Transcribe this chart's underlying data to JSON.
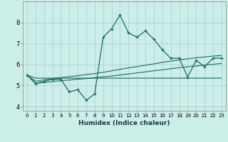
{
  "xlabel": "Humidex (Indice chaleur)",
  "background_color": "#cceee8",
  "grid_color": "#aacccc",
  "line_color": "#1a6b5a",
  "x_values": [
    0,
    1,
    2,
    3,
    4,
    5,
    6,
    7,
    8,
    9,
    10,
    11,
    12,
    13,
    14,
    15,
    16,
    17,
    18,
    19,
    20,
    21,
    22,
    23
  ],
  "y_main": [
    5.5,
    5.1,
    5.2,
    5.3,
    5.3,
    4.7,
    4.8,
    4.3,
    4.6,
    7.3,
    7.7,
    8.35,
    7.5,
    7.3,
    7.6,
    7.2,
    6.7,
    6.3,
    6.3,
    5.4,
    6.2,
    5.9,
    6.3,
    6.3
  ],
  "y_upper": [
    5.5,
    5.2,
    5.27,
    5.33,
    5.38,
    5.42,
    5.47,
    5.52,
    5.57,
    5.63,
    5.7,
    5.77,
    5.84,
    5.9,
    5.97,
    6.03,
    6.1,
    6.16,
    6.22,
    6.27,
    6.32,
    6.36,
    6.4,
    6.43
  ],
  "y_lower": [
    5.5,
    5.1,
    5.15,
    5.19,
    5.23,
    5.26,
    5.3,
    5.33,
    5.37,
    5.41,
    5.45,
    5.5,
    5.55,
    5.6,
    5.65,
    5.7,
    5.75,
    5.8,
    5.85,
    5.89,
    5.93,
    5.97,
    6.01,
    6.05
  ],
  "y_flat": [
    5.5,
    5.35,
    5.35,
    5.35,
    5.35,
    5.35,
    5.35,
    5.35,
    5.35,
    5.35,
    5.35,
    5.35,
    5.35,
    5.35,
    5.35,
    5.35,
    5.35,
    5.35,
    5.35,
    5.35,
    5.35,
    5.35,
    5.35,
    5.35
  ],
  "ylim": [
    3.8,
    9.0
  ],
  "xlim": [
    -0.5,
    23.5
  ],
  "yticks": [
    4,
    5,
    6,
    7,
    8
  ],
  "xticks": [
    0,
    1,
    2,
    3,
    4,
    5,
    6,
    7,
    8,
    9,
    10,
    11,
    12,
    13,
    14,
    15,
    16,
    17,
    18,
    19,
    20,
    21,
    22,
    23
  ]
}
